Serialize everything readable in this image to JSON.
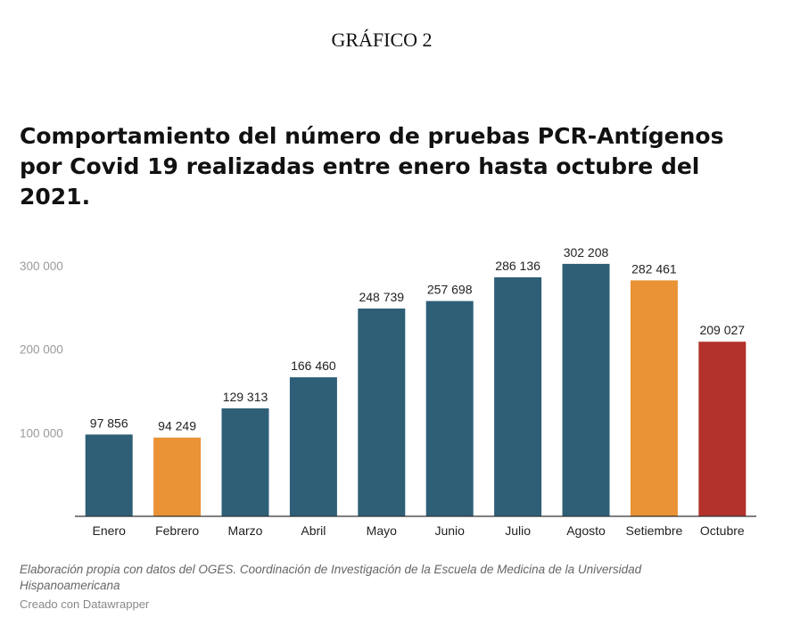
{
  "header": {
    "label": "GRÁFICO 2",
    "title": "Comportamiento del número de pruebas PCR-Antígenos por Covid 19 realizadas entre enero hasta octubre del 2021."
  },
  "footer": {
    "note": "Elaboración propia con datos del OGES. Coordinación de Investigación de la Escuela de Medicina de la Universidad Hispanoamericana",
    "credit": "Creado con Datawrapper"
  },
  "chart_data": {
    "type": "bar",
    "title": "Comportamiento del número de pruebas PCR-Antígenos por Covid 19 realizadas entre enero hasta octubre del 2021.",
    "categories": [
      "Enero",
      "Febrero",
      "Marzo",
      "Abril",
      "Mayo",
      "Junio",
      "Julio",
      "Agosto",
      "Setiembre",
      "Octubre"
    ],
    "values": [
      97856,
      94249,
      129313,
      166460,
      248739,
      257698,
      286136,
      302208,
      282461,
      209027
    ],
    "value_labels": [
      "97 856",
      "94 249",
      "129 313",
      "166 460",
      "248 739",
      "257 698",
      "286 136",
      "302 208",
      "282 461",
      "209 027"
    ],
    "bar_colors": [
      "#2e5f77",
      "#e99236",
      "#2e5f77",
      "#2e5f77",
      "#2e5f77",
      "#2e5f77",
      "#2e5f77",
      "#2e5f77",
      "#e99236",
      "#b3322b"
    ],
    "yticks": [
      100000,
      200000,
      300000
    ],
    "ytick_labels": [
      "100 000",
      "200 000",
      "300 000"
    ],
    "ylim": [
      0,
      300000
    ],
    "xlabel": "",
    "ylabel": "",
    "grid": false,
    "legend": "none"
  }
}
